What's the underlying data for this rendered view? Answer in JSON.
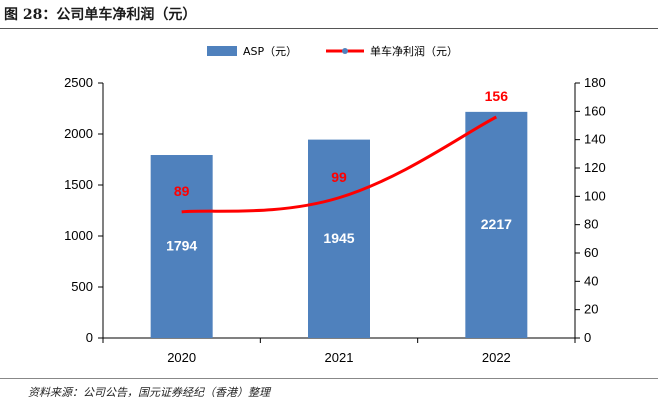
{
  "figure": {
    "title": "图 28：公司单车净利润（元）",
    "source": "资料来源：公司公告，国元证券经纪（香港）整理"
  },
  "colors": {
    "bar": "#4f81bd",
    "line": "#ff0000",
    "line_label": "#ff0000",
    "bar_label": "#ffffff"
  },
  "chart_data": {
    "type": "bar",
    "title": "",
    "categories": [
      "2020",
      "2021",
      "2022"
    ],
    "series": [
      {
        "name": "ASP（元）",
        "type": "bar",
        "axis": "left",
        "values": [
          1794,
          1945,
          2217
        ]
      },
      {
        "name": "单车净利润（元）",
        "type": "line",
        "axis": "right",
        "values": [
          89,
          99,
          156
        ]
      }
    ],
    "y_left": {
      "min": 0,
      "max": 2500,
      "ticks": [
        0,
        500,
        1000,
        1500,
        2000,
        2500
      ]
    },
    "y_right": {
      "min": 0,
      "max": 180,
      "ticks": [
        0,
        20,
        40,
        60,
        80,
        100,
        120,
        140,
        160,
        180
      ]
    },
    "legend": "top",
    "grid": false,
    "xlabel": "",
    "ylabel": ""
  }
}
